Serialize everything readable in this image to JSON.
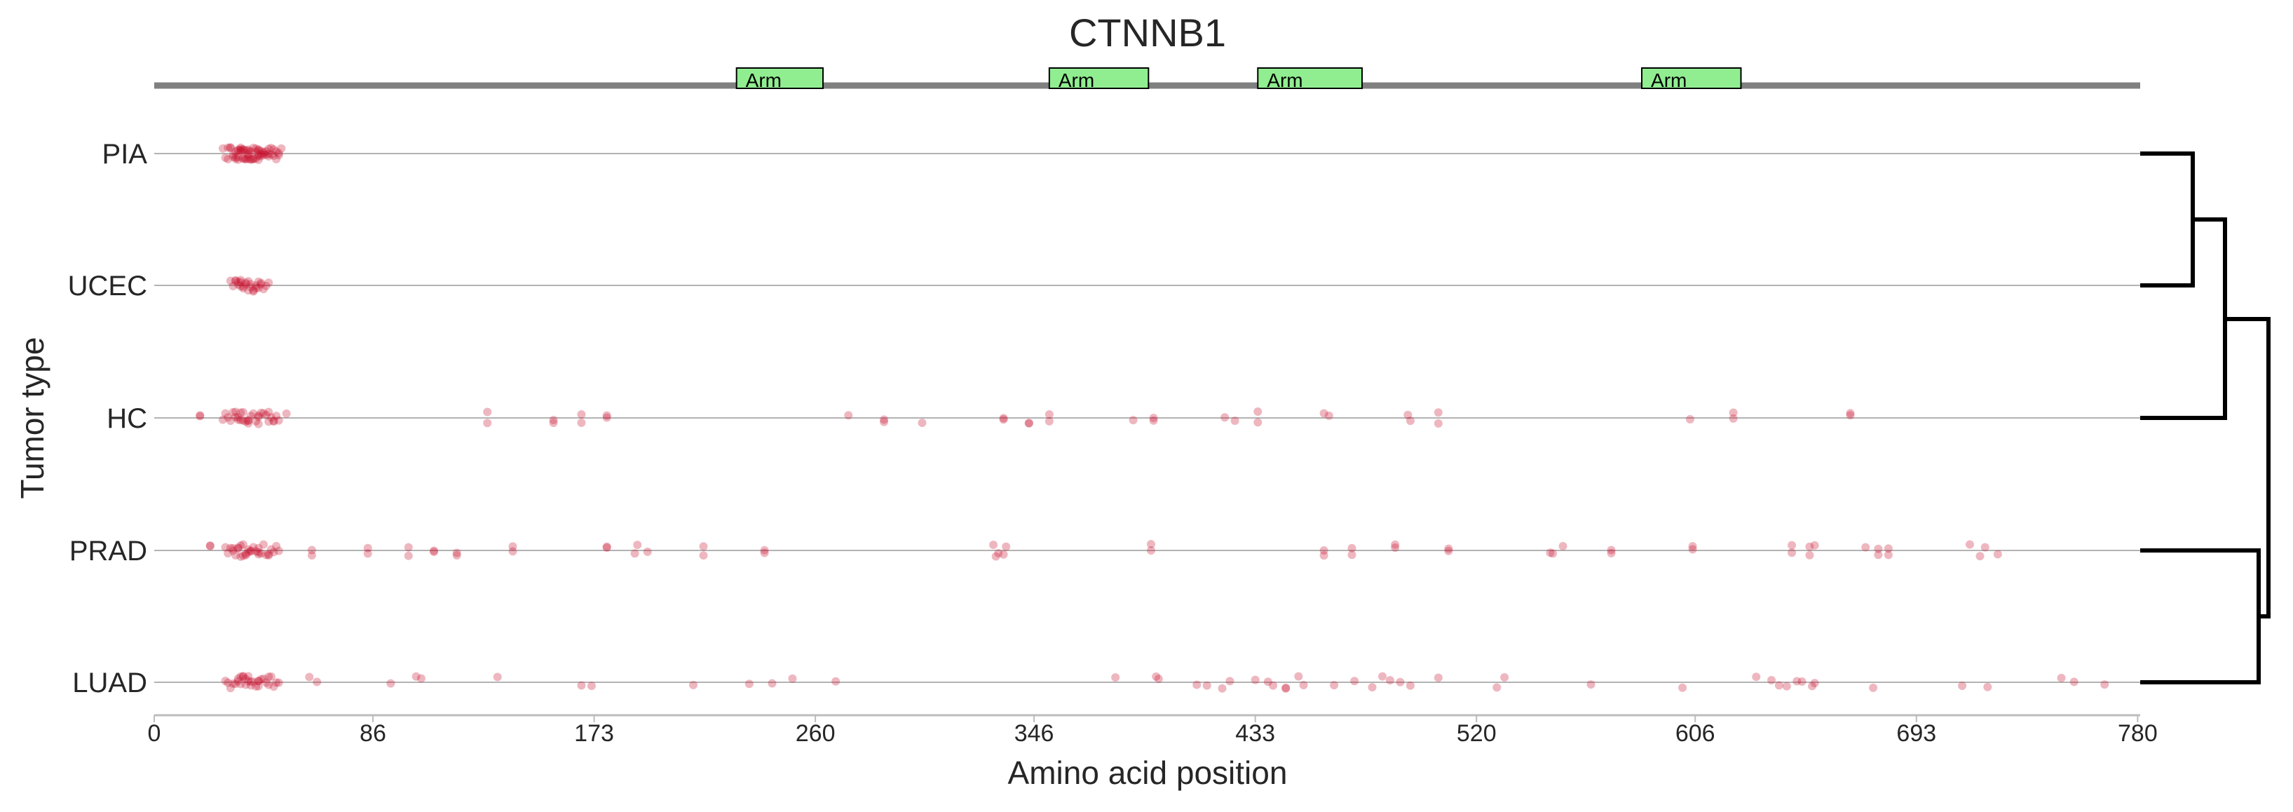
{
  "chart_data": {
    "type": "scatter",
    "title": "CTNNB1",
    "xlabel": "Amino acid position",
    "ylabel": "Tumor type",
    "xlim": [
      0,
      781
    ],
    "x_ticks": [
      0,
      86,
      173,
      260,
      346,
      433,
      520,
      606,
      693,
      780
    ],
    "grid": false,
    "categories": [
      "PIA",
      "UCEC",
      "HC",
      "PRAD",
      "LUAD"
    ],
    "point_color": "#c8102e",
    "domain_color": "#90ee90",
    "domains": [
      {
        "name": "Arm",
        "start": 229,
        "end": 263
      },
      {
        "name": "Arm",
        "start": 352,
        "end": 391
      },
      {
        "name": "Arm",
        "start": 434,
        "end": 475
      },
      {
        "name": "Arm",
        "start": 585,
        "end": 624
      }
    ],
    "series": [
      {
        "name": "PIA",
        "positions": [
          27,
          28,
          29,
          29,
          30,
          30,
          31,
          31,
          32,
          32,
          32,
          33,
          33,
          33,
          33,
          34,
          34,
          34,
          34,
          35,
          35,
          35,
          35,
          36,
          36,
          36,
          37,
          37,
          37,
          37,
          37,
          38,
          38,
          38,
          39,
          39,
          39,
          40,
          40,
          40,
          41,
          41,
          41,
          41,
          41,
          42,
          42,
          42,
          43,
          43,
          43,
          44,
          44,
          45,
          45,
          45,
          46,
          46,
          47,
          47,
          48,
          48,
          49,
          49,
          50
        ]
      },
      {
        "name": "UCEC",
        "positions": [
          30,
          31,
          32,
          32,
          33,
          33,
          34,
          34,
          34,
          35,
          35,
          36,
          36,
          37,
          37,
          38,
          38,
          39,
          39,
          40,
          40,
          41,
          41,
          42,
          42,
          43,
          44,
          45
        ]
      },
      {
        "name": "HC",
        "positions": [
          18,
          18,
          27,
          28,
          29,
          30,
          31,
          32,
          32,
          33,
          33,
          34,
          34,
          35,
          35,
          36,
          37,
          37,
          37,
          38,
          39,
          40,
          41,
          41,
          41,
          42,
          43,
          44,
          45,
          45,
          46,
          47,
          47,
          48,
          49,
          52,
          131,
          131,
          157,
          157,
          168,
          168,
          178,
          178,
          273,
          287,
          287,
          302,
          334,
          334,
          344,
          344,
          352,
          352,
          385,
          393,
          393,
          421,
          425,
          434,
          434,
          460,
          462,
          493,
          494,
          505,
          505,
          604,
          621,
          621,
          667,
          667
        ]
      },
      {
        "name": "PRAD",
        "positions": [
          22,
          22,
          28,
          29,
          30,
          31,
          31,
          32,
          33,
          33,
          34,
          34,
          35,
          35,
          36,
          36,
          37,
          37,
          38,
          38,
          39,
          40,
          41,
          41,
          41,
          42,
          43,
          44,
          45,
          45,
          46,
          47,
          48,
          49,
          62,
          62,
          84,
          84,
          100,
          100,
          110,
          110,
          119,
          119,
          141,
          141,
          178,
          178,
          189,
          190,
          194,
          216,
          216,
          240,
          240,
          330,
          331,
          332,
          334,
          335,
          392,
          392,
          460,
          460,
          471,
          471,
          488,
          488,
          509,
          509,
          549,
          550,
          554,
          573,
          573,
          605,
          605,
          644,
          644,
          651,
          651,
          653,
          673,
          678,
          678,
          682,
          682,
          714,
          718,
          720,
          725
        ]
      },
      {
        "name": "LUAD",
        "positions": [
          28,
          29,
          30,
          31,
          32,
          33,
          33,
          34,
          34,
          35,
          35,
          36,
          36,
          37,
          37,
          38,
          38,
          39,
          40,
          41,
          41,
          41,
          42,
          43,
          44,
          45,
          45,
          46,
          47,
          48,
          49,
          61,
          64,
          93,
          103,
          105,
          135,
          168,
          172,
          212,
          234,
          243,
          251,
          268,
          378,
          394,
          395,
          410,
          414,
          420,
          423,
          433,
          438,
          440,
          445,
          445,
          450,
          452,
          464,
          472,
          479,
          483,
          486,
          490,
          494,
          505,
          528,
          531,
          565,
          601,
          630,
          636,
          639,
          642,
          646,
          648,
          652,
          653,
          676,
          711,
          721,
          750,
          755,
          767
        ]
      }
    ]
  }
}
